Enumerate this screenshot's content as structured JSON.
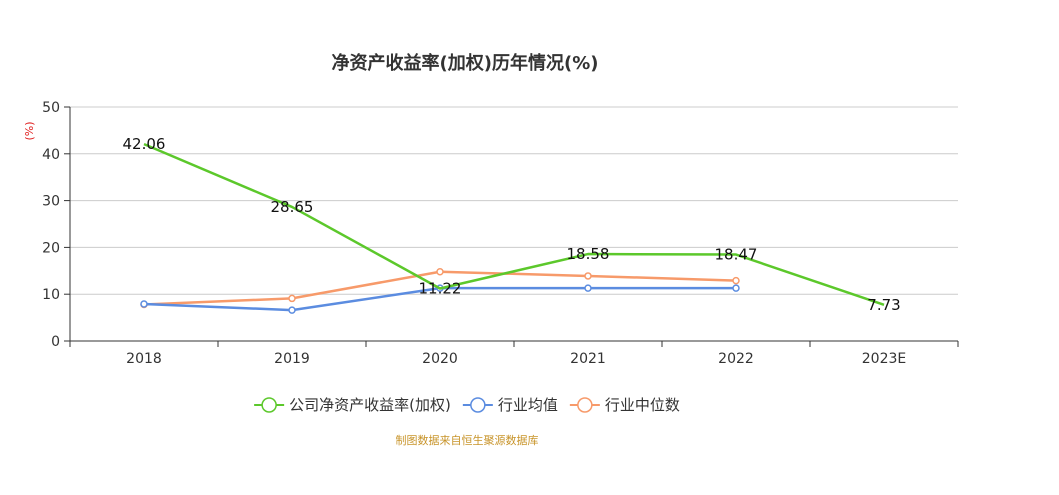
{
  "chart_data": {
    "type": "line",
    "title": "净资产收益率(加权)历年情况(%)",
    "ylabel": "(%)",
    "xlabel": "",
    "categories": [
      "2018",
      "2019",
      "2020",
      "2021",
      "2022",
      "2023E"
    ],
    "ylim": [
      0,
      50
    ],
    "yticks": [
      0,
      10,
      20,
      30,
      40,
      50
    ],
    "grid": true,
    "legend_position": "bottom",
    "series": [
      {
        "name": "公司净资产收益率(加权)",
        "color": "#5cc82b",
        "values": [
          42.06,
          28.65,
          11.22,
          18.58,
          18.47,
          7.73
        ],
        "labels": [
          "42.06",
          "28.65",
          "11.22",
          "18.58",
          "18.47",
          "7.73"
        ],
        "show_markers": false
      },
      {
        "name": "行业均值",
        "color": "#5b8ce0",
        "values": [
          7.9,
          6.6,
          11.3,
          11.3,
          11.3,
          null
        ],
        "show_markers": true
      },
      {
        "name": "行业中位数",
        "color": "#f79a6a",
        "values": [
          7.8,
          9.1,
          14.8,
          13.9,
          12.9,
          null
        ],
        "show_markers": true
      }
    ],
    "source": "制图数据来自恒生聚源数据库"
  }
}
